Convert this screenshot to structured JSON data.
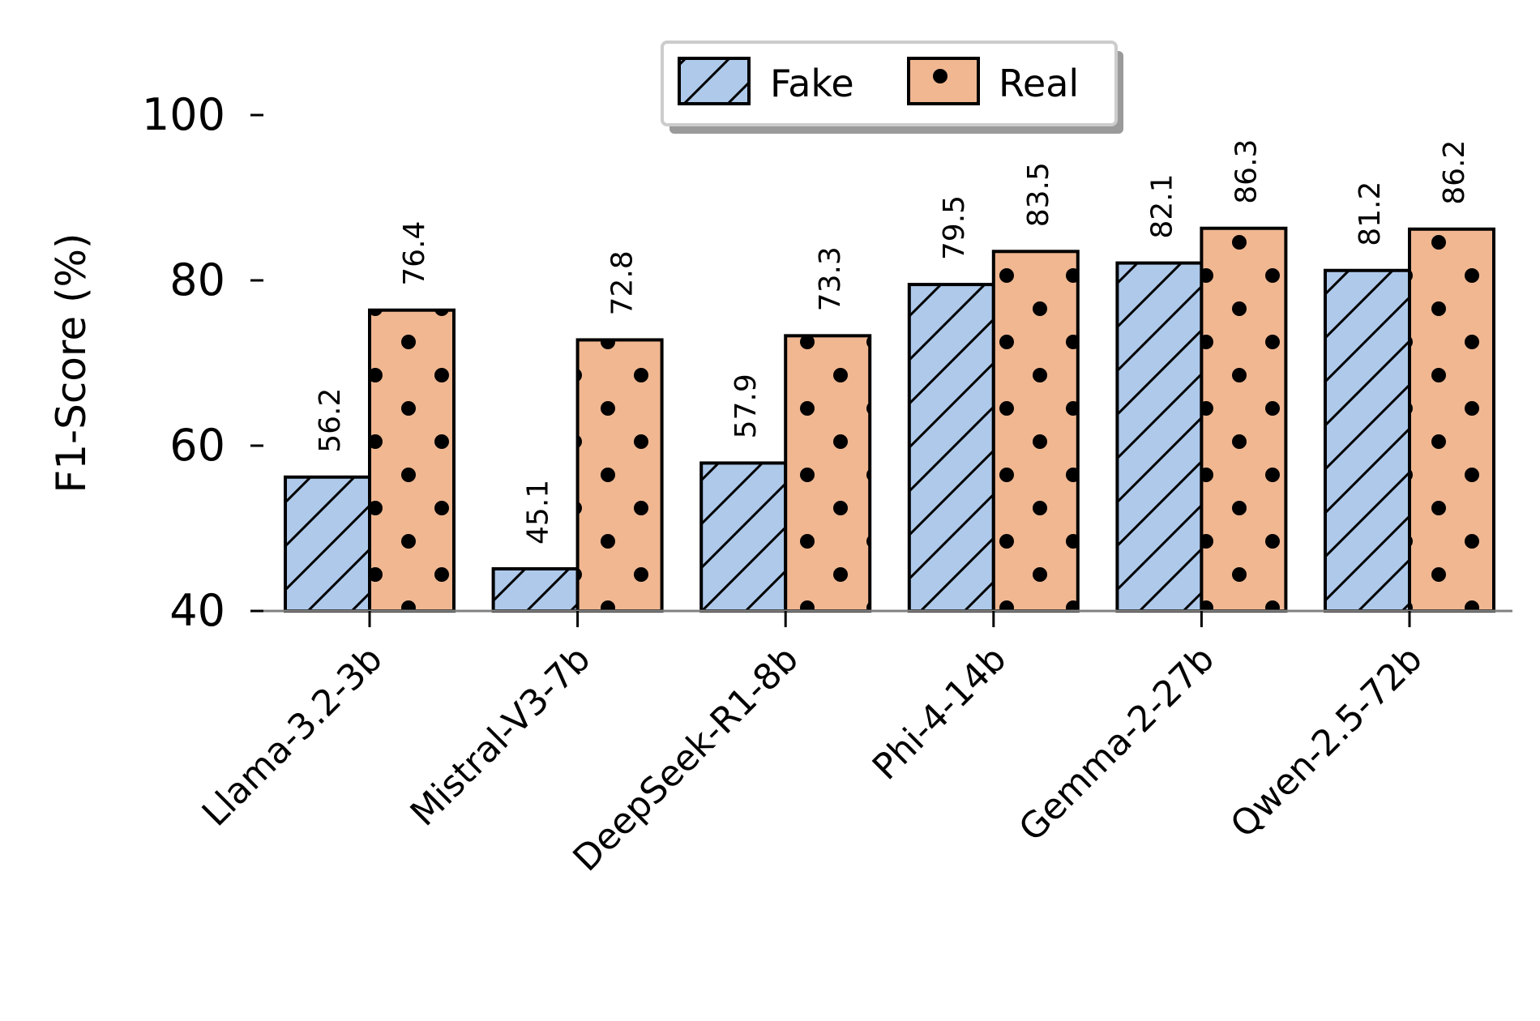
{
  "chart_data": {
    "type": "bar",
    "ylabel": "F1-Score (%)",
    "xlabel": "",
    "title": "",
    "ylim": [
      40,
      100
    ],
    "yticks": [
      40,
      60,
      80,
      100
    ],
    "categories": [
      "Llama-3.2-3b",
      "Mistral-V3-7b",
      "DeepSeek-R1-8b",
      "Phi-4-14b",
      "Gemma-2-27b",
      "Qwen-2.5-72b"
    ],
    "series": [
      {
        "name": "Fake",
        "values": [
          56.2,
          45.1,
          57.9,
          79.5,
          82.1,
          81.2
        ],
        "color": "#aec9ea",
        "hatch": "diagonal"
      },
      {
        "name": "Real",
        "values": [
          76.4,
          72.8,
          73.3,
          83.5,
          86.3,
          86.2
        ],
        "color": "#f0b791",
        "hatch": "dots"
      }
    ],
    "data_labels": {
      "Fake": [
        "56.2",
        "45.1",
        "57.9",
        "79.5",
        "82.1",
        "81.2"
      ],
      "Real": [
        "76.4",
        "72.8",
        "73.3",
        "83.5",
        "86.3",
        "86.2"
      ]
    },
    "legend_position": "top-center",
    "grid": false
  }
}
